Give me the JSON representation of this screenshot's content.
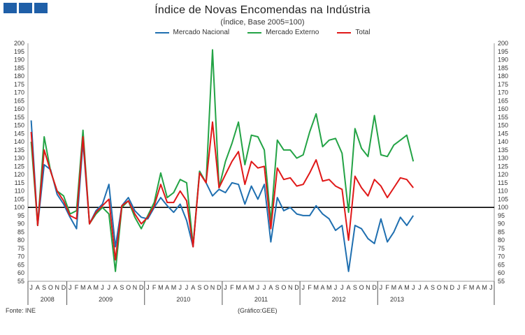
{
  "logo": {
    "color": "#1f5fa8",
    "blocks": 3
  },
  "header": {
    "title": "Índice de Novas Encomendas na Indústria",
    "subtitle": "(Índice, Base 2005=100)"
  },
  "legend": {
    "items": [
      {
        "label": "Mercado Nacional",
        "color": "#1f6fb0"
      },
      {
        "label": "Mercado Externo",
        "color": "#23a345"
      },
      {
        "label": "Total",
        "color": "#e01818"
      }
    ]
  },
  "footer": {
    "source": "Fonte: INE",
    "credit": "(Gráfico:GEE)"
  },
  "chart_data": {
    "type": "line",
    "title": "Índice de Novas Encomendas na Indústria",
    "subtitle": "(Índice, Base 2005=100)",
    "ylim": [
      55,
      200
    ],
    "ystep": 5,
    "reference_line": 100,
    "month_labels": [
      "J",
      "A",
      "S",
      "O",
      "N",
      "D",
      "J",
      "F",
      "M",
      "A",
      "M",
      "J",
      "J",
      "A",
      "S",
      "O",
      "N",
      "D",
      "J",
      "F",
      "M",
      "A",
      "M",
      "J",
      "J",
      "A",
      "S",
      "O",
      "N",
      "D",
      "J",
      "F",
      "M",
      "A",
      "M",
      "J",
      "J",
      "A",
      "S",
      "O",
      "N",
      "D",
      "J",
      "F",
      "M",
      "A",
      "M",
      "J",
      "J",
      "A",
      "S",
      "O",
      "N",
      "D",
      "J",
      "F",
      "M",
      "A",
      "M",
      "J",
      "J",
      "A",
      "S",
      "O",
      "N",
      "D",
      "J",
      "F",
      "M",
      "A",
      "M",
      "J"
    ],
    "years": [
      {
        "label": "2008",
        "start": 0,
        "count": 6
      },
      {
        "label": "2009",
        "start": 6,
        "count": 12
      },
      {
        "label": "2010",
        "start": 18,
        "count": 12
      },
      {
        "label": "2011",
        "start": 30,
        "count": 12
      },
      {
        "label": "2012",
        "start": 42,
        "count": 12
      },
      {
        "label": "2013",
        "start": 54,
        "count": 6
      }
    ],
    "series": [
      {
        "name": "Mercado Nacional",
        "color": "#1f6fb0",
        "values": [
          153,
          89,
          126,
          123,
          108,
          102,
          94,
          87,
          140,
          90,
          98,
          102,
          114,
          76,
          101,
          106,
          98,
          94,
          93,
          100,
          106,
          101,
          97,
          102,
          92,
          76,
          122,
          115,
          107,
          111,
          109,
          115,
          114,
          102,
          113,
          105,
          114,
          79,
          106,
          98,
          100,
          96,
          95,
          95,
          101,
          96,
          93,
          86,
          89,
          61,
          89,
          87,
          81,
          78,
          93,
          79,
          85,
          94,
          89,
          95
        ]
      },
      {
        "name": "Mercado Externo",
        "color": "#23a345",
        "values": [
          140,
          89,
          143,
          122,
          110,
          107,
          96,
          98,
          147,
          90,
          96,
          100,
          96,
          61,
          100,
          104,
          94,
          87,
          95,
          103,
          121,
          106,
          109,
          117,
          115,
          77,
          122,
          115,
          196,
          112,
          128,
          139,
          152,
          126,
          144,
          143,
          135,
          91,
          141,
          135,
          135,
          130,
          132,
          146,
          157,
          137,
          141,
          142,
          133,
          97,
          148,
          136,
          131,
          156,
          132,
          131,
          138,
          141,
          144,
          128
        ]
      },
      {
        "name": "Total",
        "color": "#e01818",
        "values": [
          146,
          89,
          135,
          122,
          110,
          104,
          95,
          93,
          143,
          90,
          97,
          101,
          105,
          68,
          101,
          104,
          96,
          90,
          94,
          101,
          114,
          103,
          103,
          110,
          104,
          76,
          121,
          115,
          152,
          112,
          120,
          128,
          134,
          114,
          128,
          124,
          125,
          87,
          124,
          117,
          118,
          113,
          114,
          121,
          129,
          116,
          117,
          113,
          111,
          80,
          119,
          112,
          107,
          117,
          113,
          106,
          112,
          118,
          117,
          112
        ]
      }
    ]
  }
}
